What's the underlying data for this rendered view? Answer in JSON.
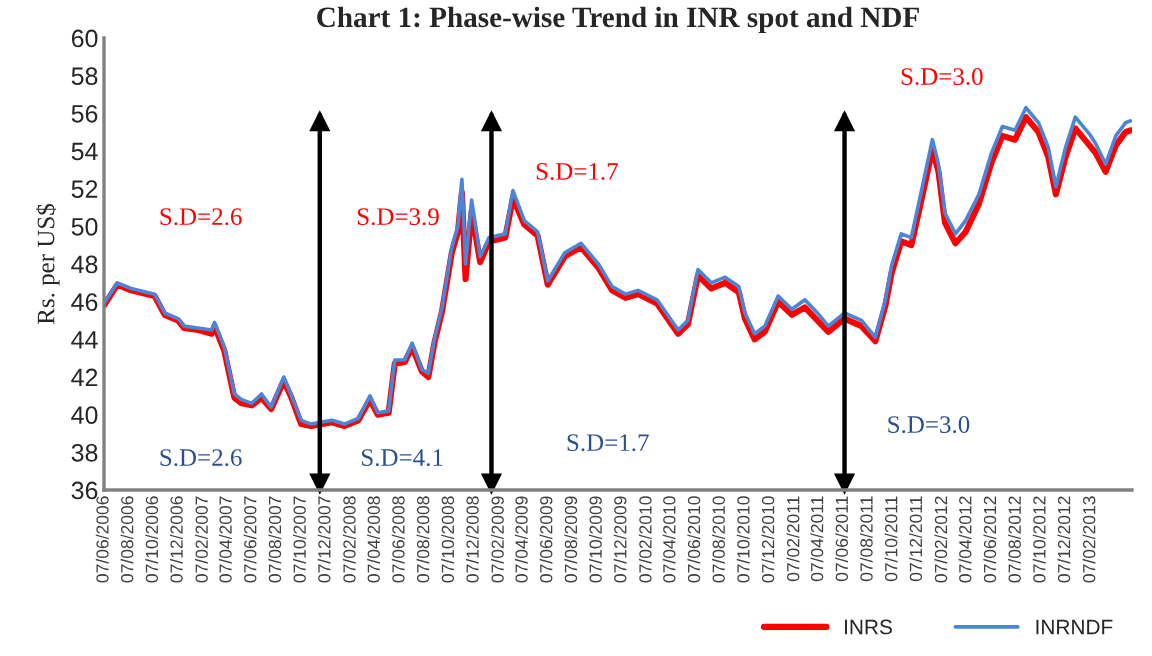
{
  "chart_data": {
    "type": "line",
    "title": "Chart 1: Phase-wise Trend in INR spot and NDF",
    "ylabel": "Rs. per US$",
    "x": [
      "2006-06-07",
      "2006-07-10",
      "2006-08-13",
      "2006-10-10",
      "2006-11-04",
      "2006-12-07",
      "2006-12-22",
      "2007-01-25",
      "2007-02-28",
      "2007-03-07",
      "2007-03-31",
      "2007-04-25",
      "2007-05-13",
      "2007-06-07",
      "2007-07-01",
      "2007-07-25",
      "2007-08-25",
      "2007-09-13",
      "2007-10-07",
      "2007-10-31",
      "2007-12-22",
      "2008-01-22",
      "2008-02-25",
      "2008-03-25",
      "2008-04-13",
      "2008-05-10",
      "2008-05-25",
      "2008-06-19",
      "2008-07-07",
      "2008-07-31",
      "2008-08-16",
      "2008-08-31",
      "2008-09-19",
      "2008-10-13",
      "2008-10-28",
      "2008-11-07",
      "2008-11-16",
      "2008-12-01",
      "2008-12-22",
      "2009-01-13",
      "2009-02-22",
      "2009-03-13",
      "2009-04-10",
      "2009-05-13",
      "2009-06-07",
      "2009-07-19",
      "2009-08-28",
      "2009-10-10",
      "2009-11-13",
      "2009-12-16",
      "2010-01-16",
      "2010-03-04",
      "2010-04-25",
      "2010-05-19",
      "2010-06-13",
      "2010-07-16",
      "2010-08-19",
      "2010-09-22",
      "2010-10-07",
      "2010-10-31",
      "2010-11-25",
      "2010-12-28",
      "2011-01-31",
      "2011-03-04",
      "2011-04-04",
      "2011-05-01",
      "2011-06-10",
      "2011-07-22",
      "2011-08-25",
      "2011-09-19",
      "2011-10-04",
      "2011-10-28",
      "2011-11-22",
      "2011-12-19",
      "2012-01-13",
      "2012-01-28",
      "2012-02-13",
      "2012-03-10",
      "2012-04-04",
      "2012-05-07",
      "2012-06-07",
      "2012-07-04",
      "2012-08-04",
      "2012-08-31",
      "2012-10-01",
      "2012-10-25",
      "2012-11-13",
      "2012-12-07",
      "2012-12-31",
      "2013-02-04",
      "2013-02-19",
      "2013-03-16",
      "2013-04-10",
      "2013-05-04",
      "2013-05-16"
    ],
    "series": [
      {
        "name": "INRS",
        "color": "#ff0000",
        "values": [
          45.8,
          46.9,
          46.6,
          46.3,
          45.3,
          45.0,
          44.6,
          44.5,
          44.3,
          44.7,
          43.4,
          40.9,
          40.6,
          40.5,
          40.9,
          40.3,
          41.8,
          40.9,
          39.5,
          39.4,
          39.6,
          39.4,
          39.7,
          40.8,
          40.0,
          40.1,
          42.7,
          42.8,
          43.6,
          42.3,
          42.0,
          43.8,
          45.5,
          48.6,
          49.7,
          51.8,
          47.2,
          50.8,
          48.1,
          49.2,
          49.4,
          51.5,
          50.1,
          49.5,
          46.9,
          48.4,
          48.9,
          47.8,
          46.6,
          46.2,
          46.4,
          45.9,
          44.3,
          44.8,
          47.4,
          46.7,
          47.0,
          46.5,
          45.1,
          44.0,
          44.4,
          46.0,
          45.3,
          45.7,
          45.0,
          44.4,
          45.1,
          44.7,
          43.9,
          45.8,
          47.5,
          49.2,
          49.0,
          51.6,
          54.1,
          52.9,
          50.2,
          49.1,
          49.7,
          51.2,
          53.4,
          54.8,
          54.6,
          55.8,
          55.0,
          53.7,
          51.7,
          53.7,
          55.2,
          54.3,
          53.9,
          52.9,
          54.3,
          55.0,
          55.1
        ]
      },
      {
        "name": "INRNDF",
        "color": "#4a86d8",
        "values": [
          45.9,
          47.0,
          46.7,
          46.4,
          45.4,
          45.1,
          44.7,
          44.6,
          44.5,
          44.9,
          43.6,
          41.1,
          40.8,
          40.6,
          41.1,
          40.4,
          42.0,
          41.0,
          39.7,
          39.5,
          39.7,
          39.5,
          39.8,
          41.0,
          40.1,
          40.2,
          42.9,
          42.9,
          43.8,
          42.4,
          42.2,
          44.0,
          45.7,
          48.9,
          50.0,
          52.5,
          48.0,
          51.4,
          48.4,
          49.4,
          49.6,
          51.9,
          50.3,
          49.7,
          47.1,
          48.6,
          49.1,
          48.0,
          46.8,
          46.4,
          46.6,
          46.1,
          44.5,
          45.0,
          47.7,
          47.0,
          47.3,
          46.8,
          45.4,
          44.3,
          44.7,
          46.3,
          45.6,
          46.1,
          45.4,
          44.7,
          45.4,
          45.0,
          44.1,
          46.1,
          47.9,
          49.6,
          49.4,
          52.1,
          54.6,
          53.3,
          50.7,
          49.6,
          50.3,
          51.7,
          53.9,
          55.3,
          55.1,
          56.3,
          55.5,
          54.2,
          52.1,
          54.2,
          55.8,
          54.9,
          54.4,
          53.3,
          54.8,
          55.5,
          55.6
        ]
      }
    ],
    "xlim": [
      "2006-06-07",
      "2013-05-20"
    ],
    "xticks": [
      {
        "value": "2006-06-07",
        "label": "07/06/2006"
      },
      {
        "value": "2006-08-07",
        "label": "07/08/2006"
      },
      {
        "value": "2006-10-07",
        "label": "07/10/2006"
      },
      {
        "value": "2006-12-07",
        "label": "07/12/2006"
      },
      {
        "value": "2007-02-07",
        "label": "07/02/2007"
      },
      {
        "value": "2007-04-07",
        "label": "07/04/2007"
      },
      {
        "value": "2007-06-07",
        "label": "07/06/2007"
      },
      {
        "value": "2007-08-07",
        "label": "07/08/2007"
      },
      {
        "value": "2007-10-07",
        "label": "07/10/2007"
      },
      {
        "value": "2007-12-07",
        "label": "07/12/2007"
      },
      {
        "value": "2008-02-07",
        "label": "07/02/2008"
      },
      {
        "value": "2008-04-07",
        "label": "07/04/2008"
      },
      {
        "value": "2008-06-07",
        "label": "07/06/2008"
      },
      {
        "value": "2008-08-07",
        "label": "07/08/2008"
      },
      {
        "value": "2008-10-07",
        "label": "07/10/2008"
      },
      {
        "value": "2008-12-07",
        "label": "07/12/2008"
      },
      {
        "value": "2009-02-07",
        "label": "07/02/2009"
      },
      {
        "value": "2009-04-07",
        "label": "07/04/2009"
      },
      {
        "value": "2009-06-07",
        "label": "07/06/2009"
      },
      {
        "value": "2009-08-07",
        "label": "07/08/2009"
      },
      {
        "value": "2009-10-07",
        "label": "07/10/2009"
      },
      {
        "value": "2009-12-07",
        "label": "07/12/2009"
      },
      {
        "value": "2010-02-07",
        "label": "07/02/2010"
      },
      {
        "value": "2010-04-07",
        "label": "07/04/2010"
      },
      {
        "value": "2010-06-07",
        "label": "07/06/2010"
      },
      {
        "value": "2010-08-07",
        "label": "07/08/2010"
      },
      {
        "value": "2010-10-07",
        "label": "07/10/2010"
      },
      {
        "value": "2010-12-07",
        "label": "07/12/2010"
      },
      {
        "value": "2011-02-07",
        "label": "07/02/2011"
      },
      {
        "value": "2011-04-07",
        "label": "07/04/2011"
      },
      {
        "value": "2011-06-07",
        "label": "07/06/2011"
      },
      {
        "value": "2011-08-07",
        "label": "07/08/2011"
      },
      {
        "value": "2011-10-07",
        "label": "07/10/2011"
      },
      {
        "value": "2011-12-07",
        "label": "07/12/2011"
      },
      {
        "value": "2012-02-07",
        "label": "07/02/2012"
      },
      {
        "value": "2012-04-07",
        "label": "07/04/2012"
      },
      {
        "value": "2012-06-07",
        "label": "07/06/2012"
      },
      {
        "value": "2012-08-07",
        "label": "07/08/2012"
      },
      {
        "value": "2012-10-07",
        "label": "07/10/2012"
      },
      {
        "value": "2012-12-07",
        "label": "07/12/2012"
      },
      {
        "value": "2013-02-07",
        "label": "07/02/2013"
      }
    ],
    "ylim": [
      36,
      60
    ],
    "yticks": [
      36,
      38,
      40,
      42,
      44,
      46,
      48,
      50,
      52,
      54,
      56,
      58,
      60
    ],
    "ref_lines": [
      {
        "axis": "x",
        "value": "2007-11-22",
        "label": null,
        "color": "#000000"
      },
      {
        "axis": "x",
        "value": "2009-01-19",
        "label": null,
        "color": "#000000"
      },
      {
        "axis": "x",
        "value": "2011-06-10",
        "label": null,
        "color": "#000000"
      }
    ],
    "annotations": [
      "S.D=2.6",
      "S.D=2.6",
      "S.D=3.9",
      "S.D=4.1",
      "S.D=1.7",
      "S.D=1.7",
      "S.D=3.0",
      "S.D=3.0"
    ],
    "legend": "bottom right",
    "grid": false,
    "marker": "none",
    "line_style": "solid"
  }
}
